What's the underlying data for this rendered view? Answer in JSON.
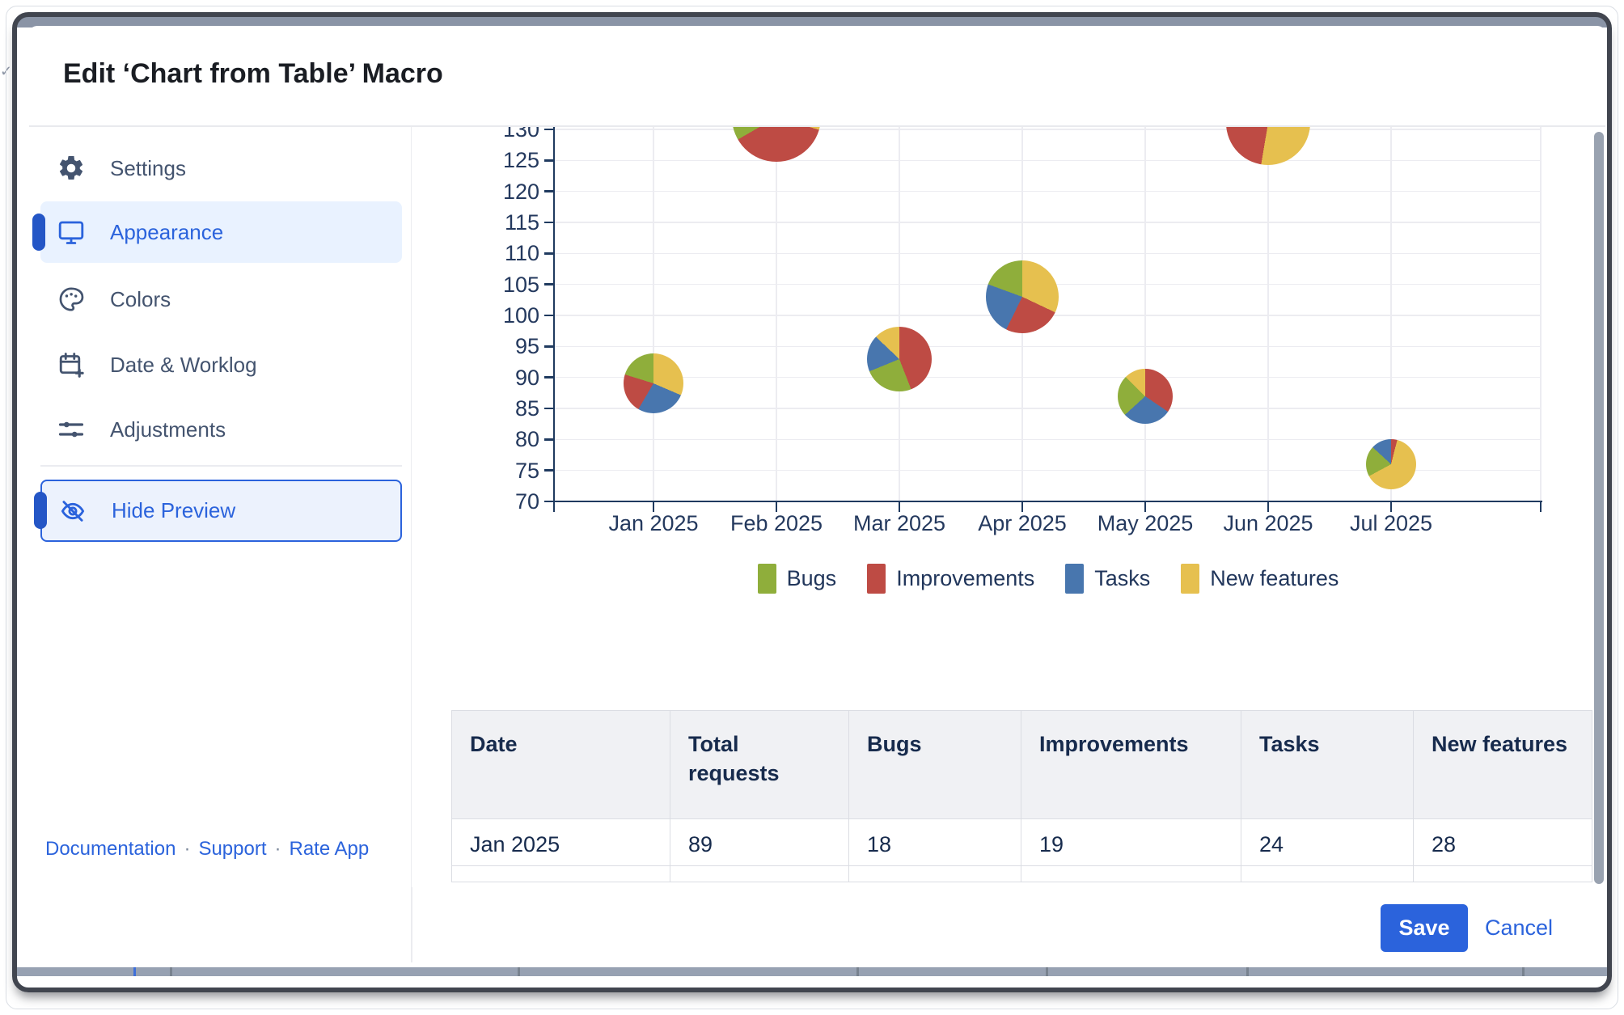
{
  "window": {
    "title": "Edit ‘Chart from Table’ Macro"
  },
  "sidebar": {
    "items": [
      {
        "label": "Settings",
        "icon": "gear-icon",
        "selected": false
      },
      {
        "label": "Appearance",
        "icon": "monitor-icon",
        "selected": true
      },
      {
        "label": "Colors",
        "icon": "palette-icon",
        "selected": false
      },
      {
        "label": "Date & Worklog",
        "icon": "calendar-plus-icon",
        "selected": false
      },
      {
        "label": "Adjustments",
        "icon": "sliders-icon",
        "selected": false
      }
    ],
    "preview_toggle": {
      "label": "Hide Preview",
      "icon": "eye-off-icon"
    },
    "footer_links": [
      "Documentation",
      "Support",
      "Rate App"
    ],
    "link_separator": "·"
  },
  "chart_data": {
    "type": "scatter",
    "subtype": "pie-bubbles",
    "x_categories": [
      "Jan 2025",
      "Feb 2025",
      "Mar 2025",
      "Apr 2025",
      "May 2025",
      "Jun 2025",
      "Jul 2025"
    ],
    "ylim": [
      70,
      130
    ],
    "ytick_step": 5,
    "grid": true,
    "legend_position": "bottom",
    "series": [
      {
        "name": "Bugs",
        "color": "#8FAE3B"
      },
      {
        "name": "Improvements",
        "color": "#BE4B44"
      },
      {
        "name": "Tasks",
        "color": "#4876AE"
      },
      {
        "name": "New features",
        "color": "#E6C04F"
      }
    ],
    "points": [
      {
        "x": "Jan 2025",
        "total": 89,
        "radius_px": 37,
        "slices_clockwise": [
          {
            "series": "New features",
            "value": 28
          },
          {
            "series": "Tasks",
            "value": 24
          },
          {
            "series": "Improvements",
            "value": 19
          },
          {
            "series": "Bugs",
            "value": 18
          }
        ]
      },
      {
        "x": "Feb 2025",
        "total": 132,
        "radius_px": 55,
        "slices_clockwise": [
          {
            "series": "Tasks",
            "value": 26
          },
          {
            "series": "New features",
            "value": 13
          },
          {
            "series": "Improvements",
            "value": 49
          },
          {
            "series": "Bugs",
            "value": 44
          }
        ]
      },
      {
        "x": "Mar 2025",
        "total": 93,
        "radius_px": 40,
        "slices_clockwise": [
          {
            "series": "Improvements",
            "value": 41
          },
          {
            "series": "Bugs",
            "value": 23
          },
          {
            "series": "Tasks",
            "value": 17
          },
          {
            "series": "New features",
            "value": 12
          }
        ]
      },
      {
        "x": "Apr 2025",
        "total": 103,
        "radius_px": 45,
        "slices_clockwise": [
          {
            "series": "New features",
            "value": 33
          },
          {
            "series": "Improvements",
            "value": 26
          },
          {
            "series": "Tasks",
            "value": 24
          },
          {
            "series": "Bugs",
            "value": 20
          }
        ]
      },
      {
        "x": "May 2025",
        "total": 87,
        "radius_px": 34,
        "slices_clockwise": [
          {
            "series": "Improvements",
            "value": 30
          },
          {
            "series": "Tasks",
            "value": 25
          },
          {
            "series": "Bugs",
            "value": 21
          },
          {
            "series": "New features",
            "value": 11
          }
        ]
      },
      {
        "x": "Jun 2025",
        "total": 131,
        "radius_px": 52,
        "slices_clockwise": [
          {
            "series": "Tasks",
            "value": 26
          },
          {
            "series": "New features",
            "value": 43
          },
          {
            "series": "Improvements",
            "value": 42
          },
          {
            "series": "Bugs",
            "value": 20
          }
        ]
      },
      {
        "x": "Jul 2025",
        "total": 76,
        "radius_px": 31,
        "slices_clockwise": [
          {
            "series": "Improvements",
            "value": 3
          },
          {
            "series": "New features",
            "value": 48
          },
          {
            "series": "Bugs",
            "value": 15
          },
          {
            "series": "Tasks",
            "value": 10
          }
        ]
      }
    ]
  },
  "table": {
    "headers": [
      "Date",
      "Total requests",
      "Bugs",
      "Improvements",
      "Tasks",
      "New features"
    ],
    "rows": [
      [
        "Jan 2025",
        "89",
        "18",
        "19",
        "24",
        "28"
      ]
    ]
  },
  "footer": {
    "save_label": "Save",
    "cancel_label": "Cancel"
  },
  "colors": {
    "accent_blue": "#2B63DC",
    "selected_bg": "#E9F2FF",
    "sidebar_text": "#44546F",
    "heading_text": "#172B4D",
    "chart_text": "#24395E",
    "axis": "#1F3A5F"
  },
  "background_page": {
    "check_glyph": "✓"
  }
}
